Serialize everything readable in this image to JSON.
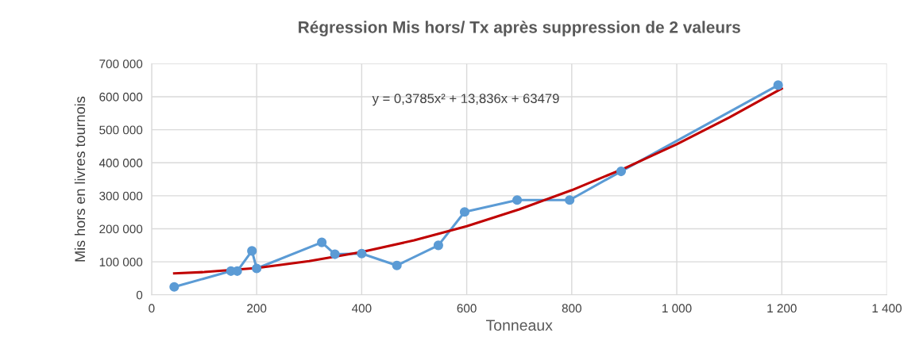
{
  "chart_data": {
    "type": "line",
    "title": "Régression Mis hors/ Tx après suppression de 2 valeurs",
    "xlabel": "Tonneaux",
    "ylabel": "Mis hors en livres tournois",
    "annotations": [
      "y = 0,3785x² + 13,836x + 63479"
    ],
    "series": [
      {
        "color": "#5b9bd5",
        "marker": "circle",
        "x": [
          43,
          151,
          163,
          191,
          200,
          324,
          349,
          400,
          467,
          546,
          596,
          696,
          796,
          894,
          1193
        ],
        "values": [
          24000,
          72000,
          72000,
          133000,
          80000,
          159000,
          123000,
          125000,
          89000,
          150000,
          251000,
          287000,
          287000,
          374000,
          635000
        ]
      },
      {
        "color": "#c00000",
        "marker": "none",
        "x": [
          43,
          100,
          200,
          300,
          400,
          500,
          600,
          700,
          800,
          900,
          1000,
          1100,
          1200
        ],
        "values": [
          65000,
          69000,
          81000,
          102000,
          130000,
          165000,
          208000,
          259000,
          317000,
          383000,
          456000,
          537000,
          625000
        ]
      }
    ],
    "xlim": [
      0,
      1400
    ],
    "xticks": [
      0,
      200,
      400,
      600,
      800,
      {
        "value": 1000,
        "label": "1 000"
      },
      {
        "value": 1200,
        "label": "1 200"
      },
      {
        "value": 1400,
        "label": "1 400"
      }
    ],
    "ylim": [
      0,
      700000
    ],
    "yticks": [
      0,
      {
        "value": 100000,
        "label": "100 000"
      },
      {
        "value": 200000,
        "label": "200 000"
      },
      {
        "value": 300000,
        "label": "300 000"
      },
      {
        "value": 400000,
        "label": "400 000"
      },
      {
        "value": 500000,
        "label": "500 000"
      },
      {
        "value": 600000,
        "label": "600 000"
      },
      {
        "value": 700000,
        "label": "700 000"
      }
    ],
    "grid": true,
    "legend": false
  }
}
